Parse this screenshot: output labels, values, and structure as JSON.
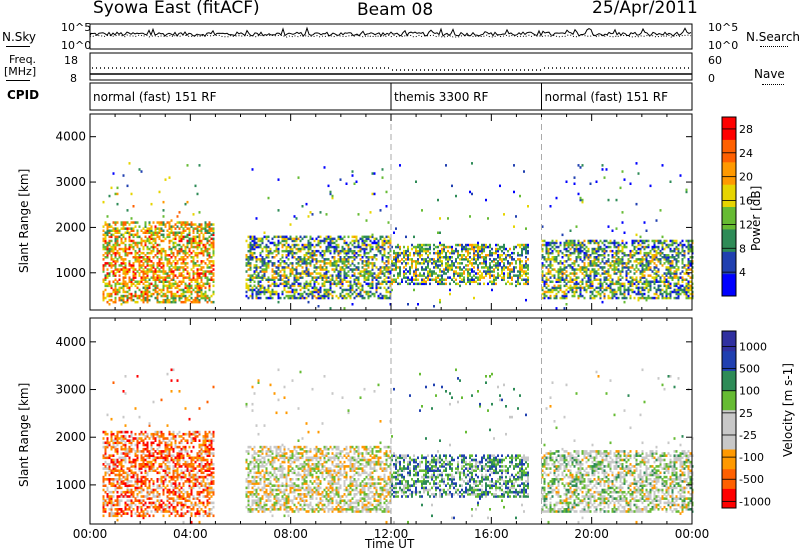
{
  "header": {
    "radar": "Syowa East (fitACF)",
    "beam": "Beam 08",
    "date": "25/Apr/2011"
  },
  "nsky_panel": {
    "label": "N.Sky",
    "ticks_left": [
      "10^5",
      "10^0"
    ],
    "ticks_right": [
      "10^5",
      "10^0"
    ],
    "right_label": "N.Search"
  },
  "freq_panel": {
    "label_line1": "Freq.",
    "label_line2": "[MHz]",
    "ticks_left": [
      "18",
      "8"
    ],
    "ticks_right": [
      "60",
      "0"
    ],
    "right_label": "Nave"
  },
  "cpid_panel": {
    "label": "CPID",
    "modes": [
      {
        "text": "normal (fast) 151 RF",
        "start_hour": 0
      },
      {
        "text": "themis 3300 RF",
        "start_hour": 12
      },
      {
        "text": "normal (fast) 151 RF",
        "start_hour": 18
      }
    ]
  },
  "x_axis": {
    "label": "Time UT",
    "ticks": [
      "00:00",
      "04:00",
      "08:00",
      "12:00",
      "16:00",
      "20:00",
      "00:00"
    ],
    "range_hours": [
      0,
      24
    ]
  },
  "colors": {
    "power": [
      "#0000ff",
      "#2040b0",
      "#2e8b57",
      "#66bb33",
      "#e6d400",
      "#ff9900",
      "#ff6000",
      "#ff0000"
    ],
    "velocity": [
      "#ff0000",
      "#ff6000",
      "#ff9900",
      "#c8c8c8",
      "#c8c8c8",
      "#66bb33",
      "#2e8b57",
      "#2040b0",
      "#3030a0"
    ]
  },
  "chart_data": [
    {
      "type": "heatmap",
      "name": "power-panel",
      "ylabel": "Slant Range [km]",
      "yticks": [
        "1000",
        "2000",
        "3000",
        "4000"
      ],
      "ylim": [
        180,
        4500
      ],
      "colorbar": {
        "label": "Power [dB]",
        "ticks": [
          "4",
          "8",
          "12",
          "16",
          "20",
          "24",
          "28"
        ],
        "range": [
          0,
          30
        ]
      },
      "echo_regions": [
        {
          "t": [
            0.5,
            4.9
          ],
          "range_km": [
            300,
            2100
          ],
          "level": "high"
        },
        {
          "t": [
            6.2,
            12.0
          ],
          "range_km": [
            400,
            1800
          ],
          "level": "medium"
        },
        {
          "t": [
            12.0,
            17.5
          ],
          "range_km": [
            700,
            1600
          ],
          "level": "medium"
        },
        {
          "t": [
            18.0,
            24.0
          ],
          "range_km": [
            400,
            1700
          ],
          "level": "medium"
        }
      ]
    },
    {
      "type": "heatmap",
      "name": "velocity-panel",
      "ylabel": "Slant Range [km]",
      "yticks": [
        "1000",
        "2000",
        "3000",
        "4000"
      ],
      "ylim": [
        180,
        4500
      ],
      "colorbar": {
        "label": "Velocity [m s-1]",
        "ticks": [
          "1000",
          "500",
          "100",
          "25",
          "-25",
          "-100",
          "-500",
          "-1000"
        ],
        "range": [
          -1000,
          1000
        ]
      },
      "echo_regions": [
        {
          "t": [
            0.5,
            4.9
          ],
          "range_km": [
            300,
            2100
          ],
          "velocity": "negative"
        },
        {
          "t": [
            6.2,
            12.0
          ],
          "range_km": [
            400,
            1800
          ],
          "velocity": "near-zero"
        },
        {
          "t": [
            12.0,
            17.5
          ],
          "range_km": [
            700,
            1600
          ],
          "velocity": "positive"
        },
        {
          "t": [
            18.0,
            24.0
          ],
          "range_km": [
            400,
            1700
          ],
          "velocity": "mixed"
        }
      ]
    }
  ]
}
